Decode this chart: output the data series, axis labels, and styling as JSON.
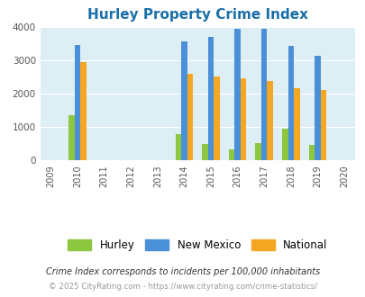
{
  "title": "Hurley Property Crime Index",
  "years": [
    2009,
    2010,
    2011,
    2012,
    2013,
    2014,
    2015,
    2016,
    2017,
    2018,
    2019,
    2020
  ],
  "bar_years": [
    2010,
    2014,
    2015,
    2016,
    2017,
    2018,
    2019
  ],
  "hurley_values": [
    1350,
    780,
    490,
    330,
    510,
    950,
    450
  ],
  "nm_values": [
    3450,
    3550,
    3700,
    3950,
    3950,
    3430,
    3120
  ],
  "national_values": [
    2950,
    2600,
    2500,
    2450,
    2380,
    2170,
    2100
  ],
  "hurley_color": "#8dc63f",
  "nm_color": "#4a90d9",
  "national_color": "#f5a623",
  "ylim": [
    0,
    4000
  ],
  "yticks": [
    0,
    1000,
    2000,
    3000,
    4000
  ],
  "background_color": "#ddeef5",
  "title_color": "#1a6fa8",
  "legend_labels": [
    "Hurley",
    "New Mexico",
    "National"
  ],
  "footnote1": "Crime Index corresponds to incidents per 100,000 inhabitants",
  "footnote2": "© 2025 CityRating.com - https://www.cityrating.com/crime-statistics/",
  "bar_width": 0.22
}
